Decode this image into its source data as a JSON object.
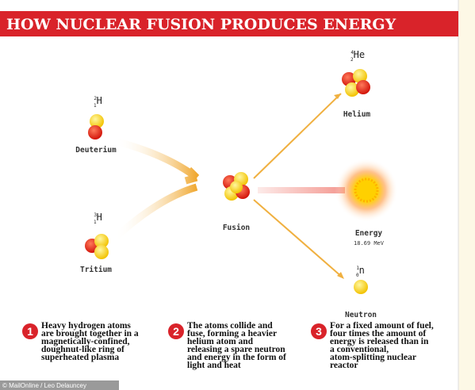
{
  "header": {
    "title": "HOW NUCLEAR FUSION PRODUCES ENERGY"
  },
  "nodes": [
    {
      "label": "Deuterium",
      "symbol": "H",
      "mass": "2",
      "atomic": "1"
    },
    {
      "label": "Tritium",
      "symbol": "H",
      "mass": "3",
      "atomic": "1"
    },
    {
      "label": "Fusion"
    },
    {
      "label": "Helium",
      "symbol": "He",
      "mass": "4",
      "atomic": "2"
    },
    {
      "label": "Energy",
      "sublabel": "18.69 MeV"
    },
    {
      "label": "Neutron",
      "symbol": "n",
      "mass": "1",
      "atomic": "0"
    }
  ],
  "steps": [
    {
      "number": "1",
      "lines": [
        "Heavy hydrogen atoms",
        "are brought together in a",
        "magnetically-confined,",
        "doughnut-like ring of",
        "superheated plasma"
      ]
    },
    {
      "number": "2",
      "lines": [
        "The atoms collide and",
        "fuse, forming a heavier",
        "helium atom and",
        "releasing a spare neutron",
        "and energy in the form of",
        "light and heat"
      ]
    },
    {
      "number": "3",
      "lines": [
        "For a fixed amount of fuel,",
        "four times the amount of",
        "energy is released than in",
        "a conventional,",
        "atom-splitting nuclear",
        "reactor"
      ]
    }
  ],
  "credit": "© MailOnline / Leo Delauncey"
}
